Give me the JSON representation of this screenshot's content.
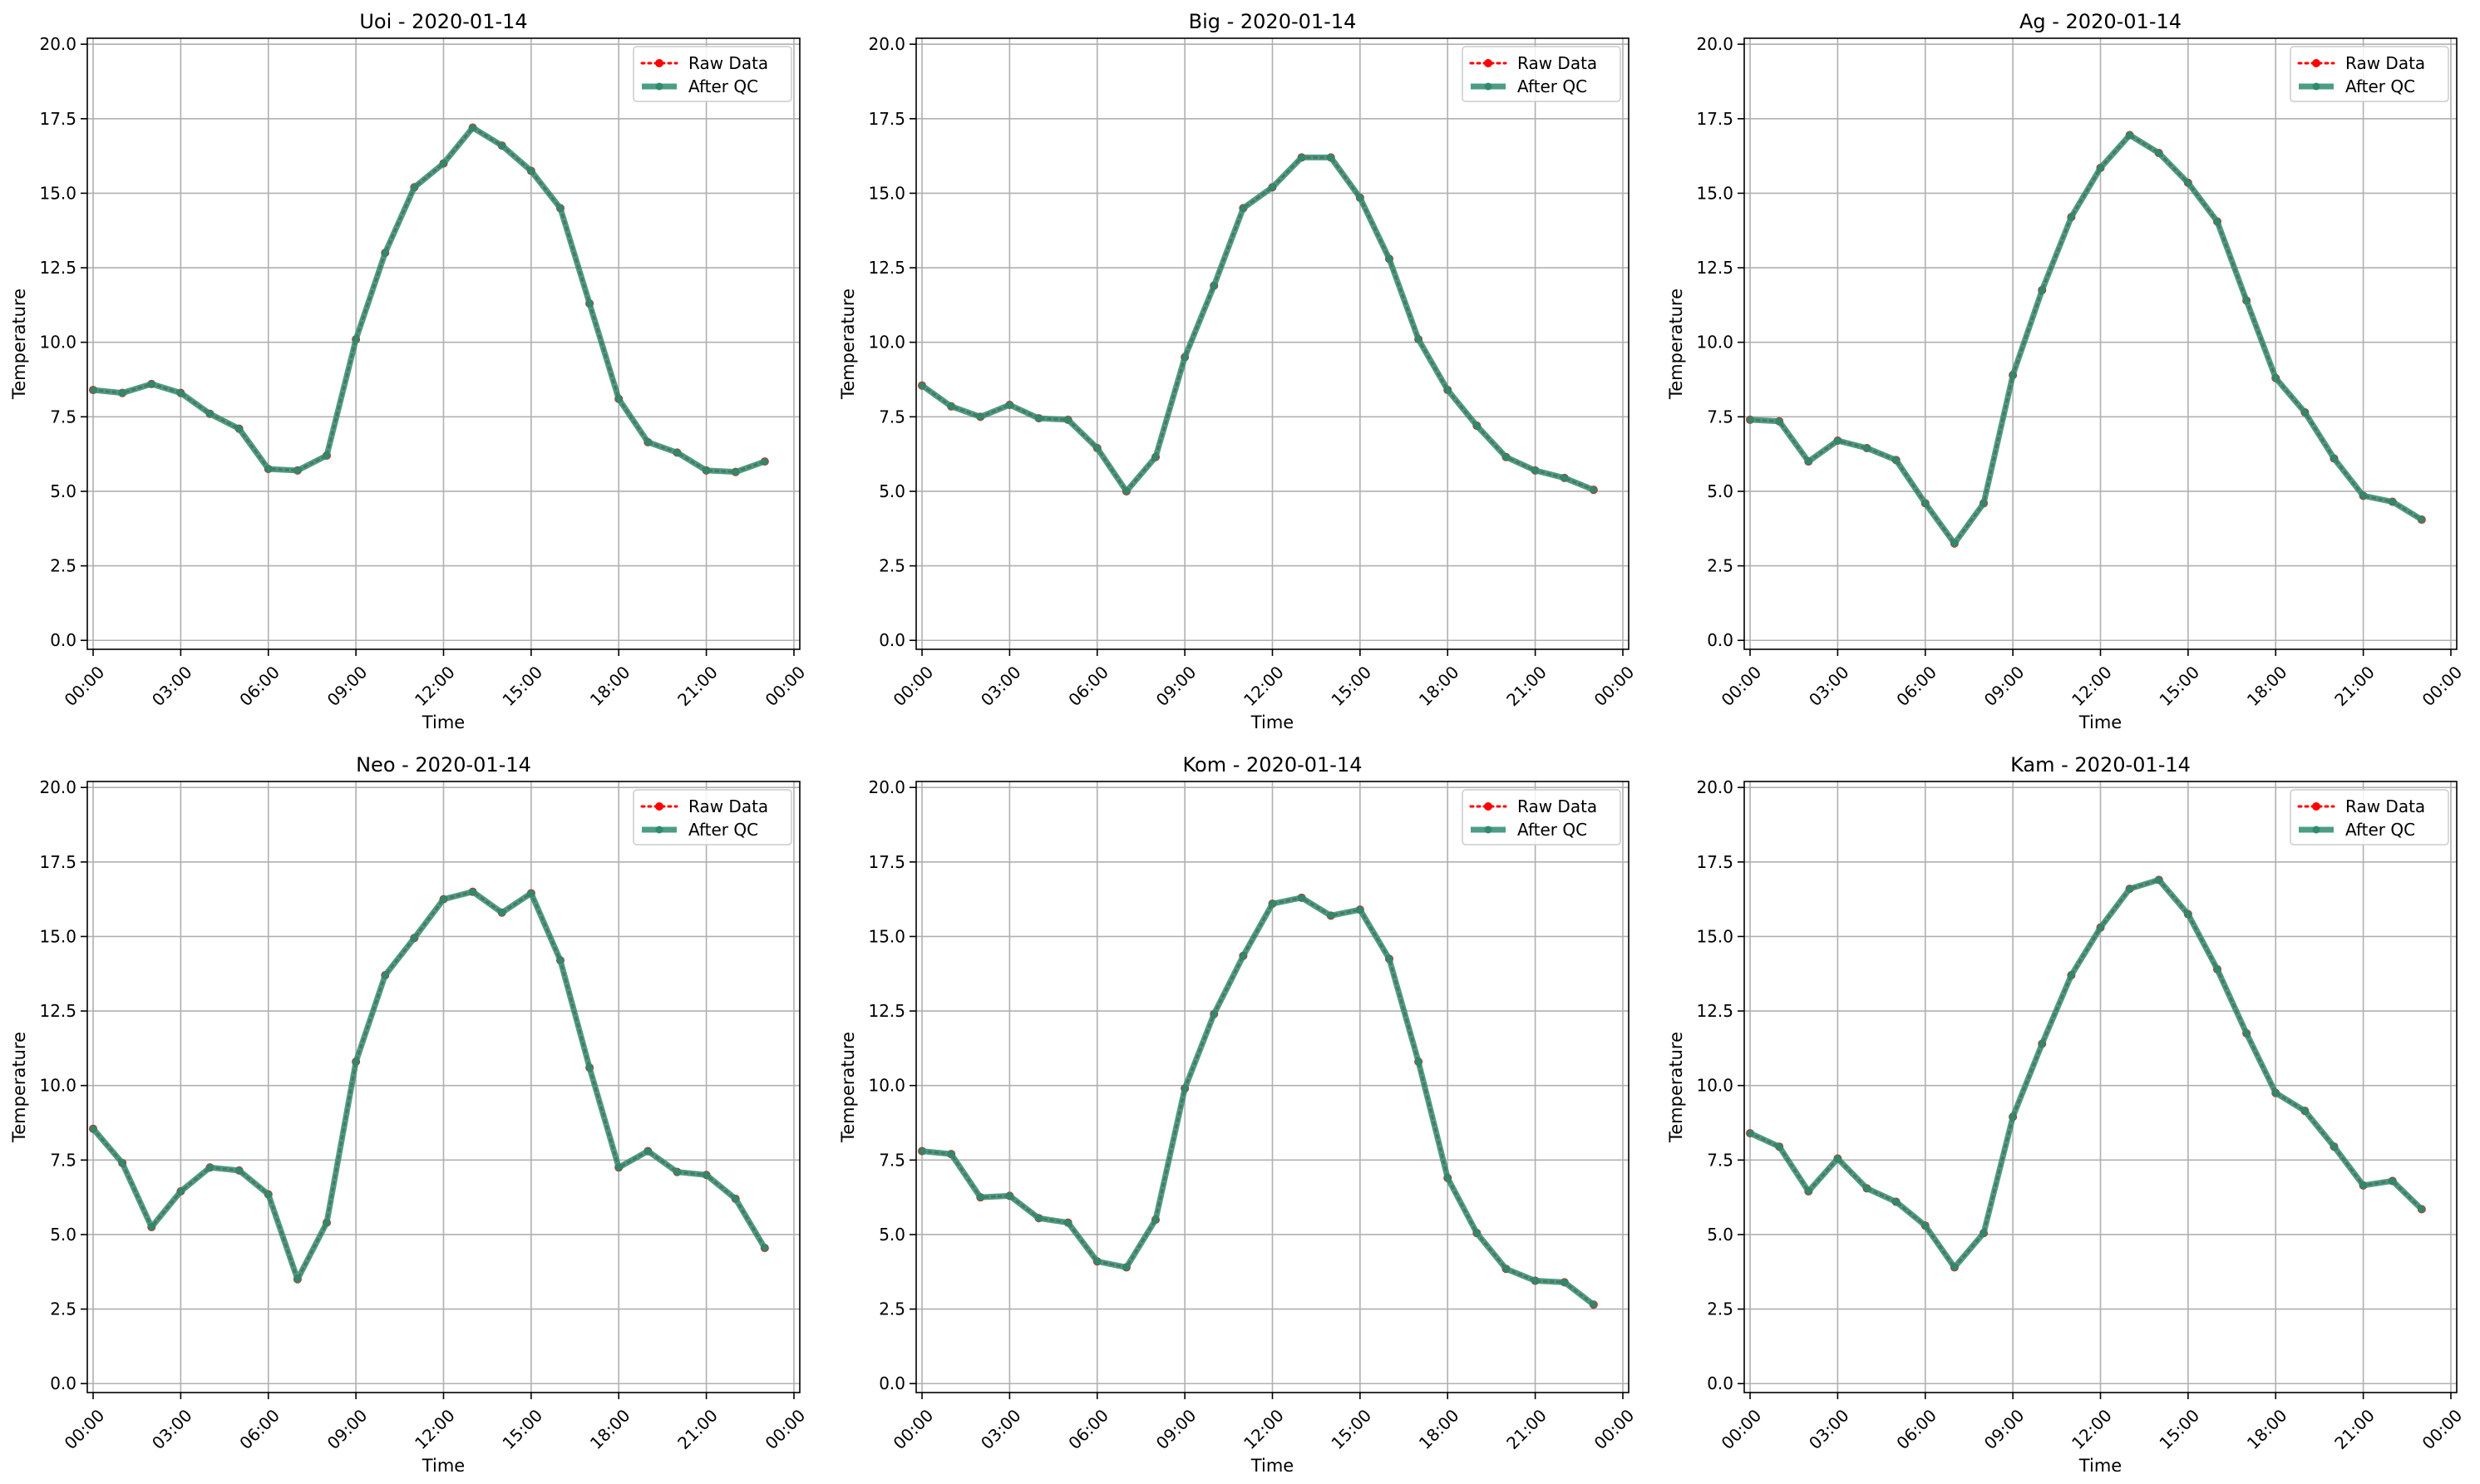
{
  "colors": {
    "raw": "#ff0000",
    "qc": "#2e8b6e",
    "grid": "#b0b0b0",
    "axis": "#000000",
    "legend_border": "#cccccc"
  },
  "chart_data": [
    {
      "type": "line",
      "title": "Uoi - 2020-01-14",
      "xlabel": "Time",
      "ylabel": "Temperature",
      "xticks": [
        "00:00",
        "03:00",
        "06:00",
        "09:00",
        "12:00",
        "15:00",
        "18:00",
        "21:00",
        "00:00"
      ],
      "yticks": [
        "0.0",
        "2.5",
        "5.0",
        "7.5",
        "10.0",
        "12.5",
        "15.0",
        "17.5",
        "20.0"
      ],
      "xlim_hours": [
        -0.2,
        24.2
      ],
      "ylim": [
        -0.3,
        20.2
      ],
      "grid": true,
      "legend_position": "top-right",
      "x_hours": [
        0,
        1,
        2,
        3,
        4,
        5,
        6,
        7,
        8,
        9,
        10,
        11,
        12,
        13,
        14,
        15,
        16,
        17,
        18,
        19,
        20,
        21,
        22,
        23
      ],
      "series": [
        {
          "name": "Raw Data",
          "style": "dotted-marker",
          "values": [
            8.4,
            8.3,
            8.6,
            8.3,
            7.6,
            7.1,
            5.75,
            5.7,
            6.2,
            10.1,
            13.0,
            15.2,
            16.0,
            17.2,
            16.6,
            15.75,
            14.5,
            11.3,
            8.1,
            6.65,
            6.3,
            5.7,
            5.65,
            6.0
          ]
        },
        {
          "name": "After QC",
          "style": "thick-line",
          "values": [
            8.4,
            8.3,
            8.6,
            8.3,
            7.6,
            7.1,
            5.75,
            5.7,
            6.2,
            10.1,
            13.0,
            15.2,
            16.0,
            17.2,
            16.6,
            15.75,
            14.5,
            11.3,
            8.1,
            6.65,
            6.3,
            5.7,
            5.65,
            6.0
          ]
        }
      ]
    },
    {
      "type": "line",
      "title": "Big - 2020-01-14",
      "xlabel": "Time",
      "ylabel": "Temperature",
      "xticks": [
        "00:00",
        "03:00",
        "06:00",
        "09:00",
        "12:00",
        "15:00",
        "18:00",
        "21:00",
        "00:00"
      ],
      "yticks": [
        "0.0",
        "2.5",
        "5.0",
        "7.5",
        "10.0",
        "12.5",
        "15.0",
        "17.5",
        "20.0"
      ],
      "xlim_hours": [
        -0.2,
        24.2
      ],
      "ylim": [
        -0.3,
        20.2
      ],
      "grid": true,
      "legend_position": "top-right",
      "x_hours": [
        0,
        1,
        2,
        3,
        4,
        5,
        6,
        7,
        8,
        9,
        10,
        11,
        12,
        13,
        14,
        15,
        16,
        17,
        18,
        19,
        20,
        21,
        22,
        23
      ],
      "series": [
        {
          "name": "Raw Data",
          "style": "dotted-marker",
          "values": [
            8.55,
            7.85,
            7.5,
            7.9,
            7.45,
            7.4,
            6.45,
            5.0,
            6.15,
            9.5,
            11.9,
            14.5,
            15.2,
            16.2,
            16.2,
            14.85,
            12.8,
            10.1,
            8.4,
            7.2,
            6.15,
            5.7,
            5.45,
            5.05
          ]
        },
        {
          "name": "After QC",
          "style": "thick-line",
          "values": [
            8.55,
            7.85,
            7.5,
            7.9,
            7.45,
            7.4,
            6.45,
            5.0,
            6.15,
            9.5,
            11.9,
            14.5,
            15.2,
            16.2,
            16.2,
            14.85,
            12.8,
            10.1,
            8.4,
            7.2,
            6.15,
            5.7,
            5.45,
            5.05
          ]
        }
      ]
    },
    {
      "type": "line",
      "title": "Ag - 2020-01-14",
      "xlabel": "Time",
      "ylabel": "Temperature",
      "xticks": [
        "00:00",
        "03:00",
        "06:00",
        "09:00",
        "12:00",
        "15:00",
        "18:00",
        "21:00",
        "00:00"
      ],
      "yticks": [
        "0.0",
        "2.5",
        "5.0",
        "7.5",
        "10.0",
        "12.5",
        "15.0",
        "17.5",
        "20.0"
      ],
      "xlim_hours": [
        -0.2,
        24.2
      ],
      "ylim": [
        -0.3,
        20.2
      ],
      "grid": true,
      "legend_position": "top-right",
      "x_hours": [
        0,
        1,
        2,
        3,
        4,
        5,
        6,
        7,
        8,
        9,
        10,
        11,
        12,
        13,
        14,
        15,
        16,
        17,
        18,
        19,
        20,
        21,
        22,
        23
      ],
      "series": [
        {
          "name": "Raw Data",
          "style": "dotted-marker",
          "values": [
            7.4,
            7.35,
            6.0,
            6.7,
            6.45,
            6.05,
            4.6,
            3.25,
            4.6,
            8.9,
            11.75,
            14.2,
            15.85,
            16.95,
            16.35,
            15.35,
            14.05,
            11.4,
            8.8,
            7.65,
            6.1,
            4.85,
            4.65,
            4.05
          ]
        },
        {
          "name": "After QC",
          "style": "thick-line",
          "values": [
            7.4,
            7.35,
            6.0,
            6.7,
            6.45,
            6.05,
            4.6,
            3.25,
            4.6,
            8.9,
            11.75,
            14.2,
            15.85,
            16.95,
            16.35,
            15.35,
            14.05,
            11.4,
            8.8,
            7.65,
            6.1,
            4.85,
            4.65,
            4.05
          ]
        }
      ]
    },
    {
      "type": "line",
      "title": "Neo - 2020-01-14",
      "xlabel": "Time",
      "ylabel": "Temperature",
      "xticks": [
        "00:00",
        "03:00",
        "06:00",
        "09:00",
        "12:00",
        "15:00",
        "18:00",
        "21:00",
        "00:00"
      ],
      "yticks": [
        "0.0",
        "2.5",
        "5.0",
        "7.5",
        "10.0",
        "12.5",
        "15.0",
        "17.5",
        "20.0"
      ],
      "xlim_hours": [
        -0.2,
        24.2
      ],
      "ylim": [
        -0.3,
        20.2
      ],
      "grid": true,
      "legend_position": "top-right",
      "x_hours": [
        0,
        1,
        2,
        3,
        4,
        5,
        6,
        7,
        8,
        9,
        10,
        11,
        12,
        13,
        14,
        15,
        16,
        17,
        18,
        19,
        20,
        21,
        22,
        23
      ],
      "series": [
        {
          "name": "Raw Data",
          "style": "dotted-marker",
          "values": [
            8.55,
            7.4,
            5.25,
            6.45,
            7.25,
            7.15,
            6.35,
            3.5,
            5.4,
            10.8,
            13.7,
            14.95,
            16.25,
            16.5,
            15.8,
            16.45,
            14.2,
            10.6,
            7.25,
            7.8,
            7.1,
            7.0,
            6.2,
            4.55
          ]
        },
        {
          "name": "After QC",
          "style": "thick-line",
          "values": [
            8.55,
            7.4,
            5.25,
            6.45,
            7.25,
            7.15,
            6.35,
            3.5,
            5.4,
            10.8,
            13.7,
            14.95,
            16.25,
            16.5,
            15.8,
            16.45,
            14.2,
            10.6,
            7.25,
            7.8,
            7.1,
            7.0,
            6.2,
            4.55
          ]
        }
      ]
    },
    {
      "type": "line",
      "title": "Kom - 2020-01-14",
      "xlabel": "Time",
      "ylabel": "Temperature",
      "xticks": [
        "00:00",
        "03:00",
        "06:00",
        "09:00",
        "12:00",
        "15:00",
        "18:00",
        "21:00",
        "00:00"
      ],
      "yticks": [
        "0.0",
        "2.5",
        "5.0",
        "7.5",
        "10.0",
        "12.5",
        "15.0",
        "17.5",
        "20.0"
      ],
      "xlim_hours": [
        -0.2,
        24.2
      ],
      "ylim": [
        -0.3,
        20.2
      ],
      "grid": true,
      "legend_position": "top-right",
      "x_hours": [
        0,
        1,
        2,
        3,
        4,
        5,
        6,
        7,
        8,
        9,
        10,
        11,
        12,
        13,
        14,
        15,
        16,
        17,
        18,
        19,
        20,
        21,
        22,
        23
      ],
      "series": [
        {
          "name": "Raw Data",
          "style": "dotted-marker",
          "values": [
            7.8,
            7.7,
            6.25,
            6.3,
            5.55,
            5.4,
            4.1,
            3.9,
            5.5,
            9.9,
            12.4,
            14.35,
            16.1,
            16.3,
            15.7,
            15.9,
            14.25,
            10.8,
            6.9,
            5.05,
            3.85,
            3.45,
            3.4,
            2.65
          ]
        },
        {
          "name": "After QC",
          "style": "thick-line",
          "values": [
            7.8,
            7.7,
            6.25,
            6.3,
            5.55,
            5.4,
            4.1,
            3.9,
            5.5,
            9.9,
            12.4,
            14.35,
            16.1,
            16.3,
            15.7,
            15.9,
            14.25,
            10.8,
            6.9,
            5.05,
            3.85,
            3.45,
            3.4,
            2.65
          ]
        }
      ]
    },
    {
      "type": "line",
      "title": "Kam - 2020-01-14",
      "xlabel": "Time",
      "ylabel": "Temperature",
      "xticks": [
        "00:00",
        "03:00",
        "06:00",
        "09:00",
        "12:00",
        "15:00",
        "18:00",
        "21:00",
        "00:00"
      ],
      "yticks": [
        "0.0",
        "2.5",
        "5.0",
        "7.5",
        "10.0",
        "12.5",
        "15.0",
        "17.5",
        "20.0"
      ],
      "xlim_hours": [
        -0.2,
        24.2
      ],
      "ylim": [
        -0.3,
        20.2
      ],
      "grid": true,
      "legend_position": "top-right",
      "x_hours": [
        0,
        1,
        2,
        3,
        4,
        5,
        6,
        7,
        8,
        9,
        10,
        11,
        12,
        13,
        14,
        15,
        16,
        17,
        18,
        19,
        20,
        21,
        22,
        23
      ],
      "series": [
        {
          "name": "Raw Data",
          "style": "dotted-marker",
          "values": [
            8.4,
            7.95,
            6.45,
            7.55,
            6.55,
            6.1,
            5.3,
            3.9,
            5.05,
            8.95,
            11.4,
            13.7,
            15.3,
            16.6,
            16.9,
            15.75,
            13.9,
            11.75,
            9.75,
            9.15,
            7.95,
            6.65,
            6.8,
            5.85
          ]
        },
        {
          "name": "After QC",
          "style": "thick-line",
          "values": [
            8.4,
            7.95,
            6.45,
            7.55,
            6.55,
            6.1,
            5.3,
            3.9,
            5.05,
            8.95,
            11.4,
            13.7,
            15.3,
            16.6,
            16.9,
            15.75,
            13.9,
            11.75,
            9.75,
            9.15,
            7.95,
            6.65,
            6.8,
            5.85
          ]
        }
      ]
    }
  ]
}
